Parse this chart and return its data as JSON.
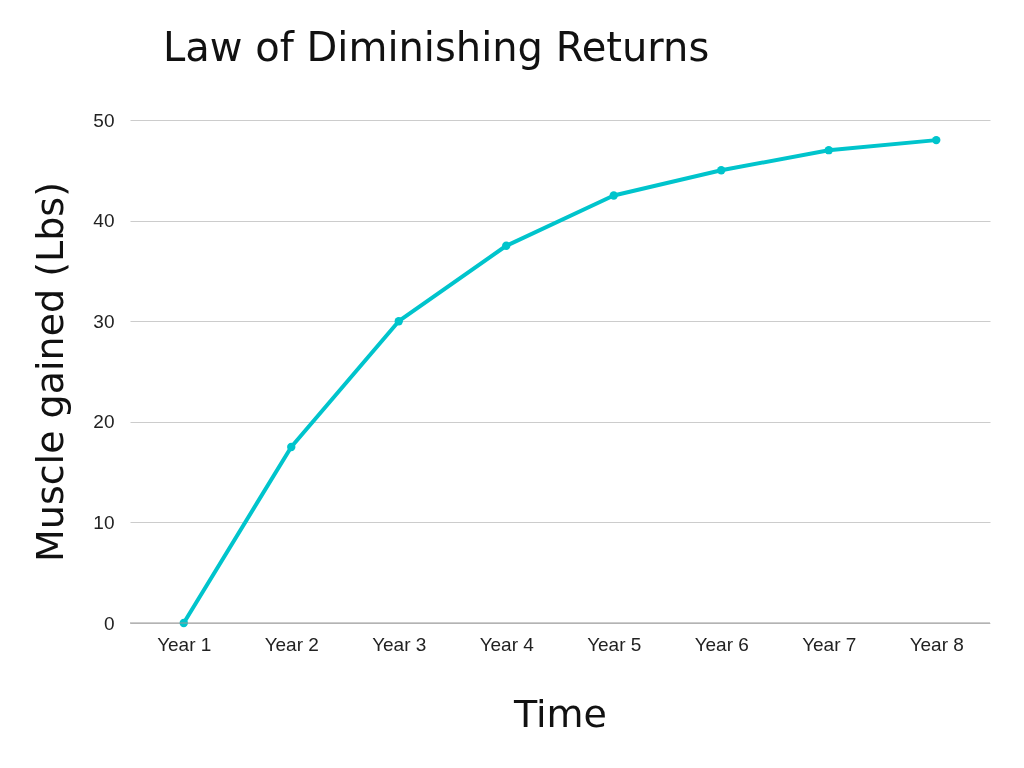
{
  "chart_data": {
    "type": "line",
    "title": "Law of Diminishing Returns",
    "xlabel": "Time",
    "ylabel": "Muscle gained (Lbs)",
    "categories": [
      "Year 1",
      "Year 2",
      "Year 3",
      "Year 4",
      "Year 5",
      "Year 6",
      "Year 7",
      "Year 8"
    ],
    "series": [
      {
        "color": "#00c4cc",
        "values": [
          0,
          17.5,
          30,
          37.5,
          42.5,
          45,
          47,
          48
        ]
      }
    ],
    "ylim": [
      0,
      50
    ],
    "yticks": [
      0,
      10,
      20,
      30,
      40,
      50
    ],
    "grid": "y",
    "marker": "circle",
    "line_style": "solid",
    "legend": false
  }
}
